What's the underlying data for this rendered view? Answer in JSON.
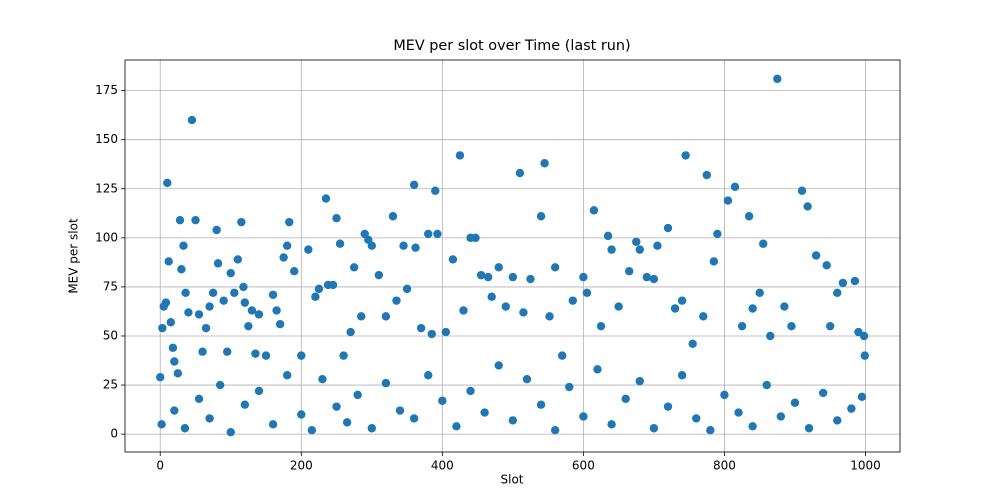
{
  "chart_data": {
    "type": "scatter",
    "title": "MEV per slot over Time (last run)",
    "x_label": "Slot",
    "y_label": "MEV per slot",
    "color": "#1f77b4",
    "grid": true,
    "xlim": [
      -49.95,
      1048.95
    ],
    "ylim": [
      -9.1,
      190.6
    ],
    "xticks": [
      0,
      200,
      400,
      600,
      800,
      1000
    ],
    "yticks": [
      0,
      25,
      50,
      75,
      100,
      125,
      150,
      175
    ],
    "x": [
      0,
      3,
      5,
      8,
      10,
      12,
      15,
      18,
      20,
      25,
      28,
      30,
      33,
      36,
      40,
      45,
      50,
      55,
      60,
      65,
      70,
      75,
      80,
      82,
      90,
      95,
      100,
      105,
      110,
      115,
      118,
      120,
      125,
      130,
      135,
      140,
      150,
      160,
      165,
      170,
      175,
      180,
      183,
      190,
      200,
      210,
      220,
      225,
      235,
      238,
      245,
      250,
      255,
      260,
      270,
      275,
      285,
      290,
      295,
      300,
      310,
      320,
      330,
      335,
      345,
      350,
      360,
      362,
      370,
      380,
      385,
      390,
      393,
      405,
      415,
      425,
      430,
      440,
      447,
      455,
      465,
      470,
      480,
      490,
      500,
      510,
      515,
      525,
      540,
      545,
      552,
      560,
      570,
      585,
      600,
      605,
      615,
      625,
      635,
      640,
      650,
      665,
      675,
      680,
      690,
      700,
      705,
      720,
      730,
      740,
      745,
      755,
      770,
      775,
      785,
      790,
      805,
      815,
      825,
      835,
      840,
      850,
      855,
      865,
      875,
      885,
      895,
      910,
      918,
      930,
      945,
      950,
      960,
      968,
      985,
      990,
      998,
      999,
      2,
      20,
      35,
      55,
      70,
      85,
      100,
      120,
      140,
      160,
      180,
      200,
      215,
      230,
      250,
      265,
      280,
      300,
      320,
      340,
      360,
      380,
      400,
      420,
      440,
      460,
      480,
      500,
      520,
      540,
      560,
      580,
      600,
      620,
      640,
      660,
      680,
      700,
      720,
      740,
      760,
      780,
      800,
      820,
      840,
      860,
      880,
      900,
      920,
      940,
      960,
      980,
      995
    ],
    "values": [
      29,
      54,
      65,
      67,
      128,
      88,
      57,
      44,
      37,
      31,
      109,
      84,
      96,
      72,
      62,
      160,
      109,
      61,
      42,
      54,
      65,
      72,
      104,
      87,
      68,
      42,
      82,
      72,
      89,
      108,
      75,
      67,
      55,
      63,
      41,
      61,
      40,
      71,
      63,
      56,
      90,
      96,
      108,
      83,
      40,
      94,
      70,
      74,
      120,
      76,
      76,
      110,
      97,
      40,
      52,
      85,
      60,
      102,
      99,
      96,
      81,
      60,
      111,
      68,
      96,
      74,
      127,
      95,
      54,
      102,
      51,
      124,
      102,
      52,
      89,
      142,
      63,
      100,
      100,
      81,
      80,
      70,
      85,
      65,
      80,
      133,
      62,
      79,
      111,
      138,
      60,
      85,
      40,
      68,
      80,
      72,
      114,
      55,
      101,
      94,
      65,
      83,
      98,
      94,
      80,
      79,
      96,
      105,
      64,
      68,
      142,
      46,
      60,
      132,
      88,
      102,
      119,
      126,
      55,
      111,
      64,
      72,
      97,
      50,
      181,
      65,
      55,
      124,
      116,
      91,
      86,
      55,
      72,
      77,
      78,
      52,
      50,
      40,
      5,
      12,
      3,
      18,
      8,
      25,
      1,
      15,
      22,
      5,
      30,
      10,
      2,
      28,
      14,
      6,
      20,
      3,
      26,
      12,
      8,
      30,
      17,
      4,
      22,
      11,
      35,
      7,
      28,
      15,
      2,
      24,
      9,
      33,
      5,
      18,
      27,
      3,
      14,
      30,
      8,
      2,
      20,
      11,
      4,
      25,
      9,
      16,
      3,
      21,
      7,
      13,
      19
    ]
  }
}
